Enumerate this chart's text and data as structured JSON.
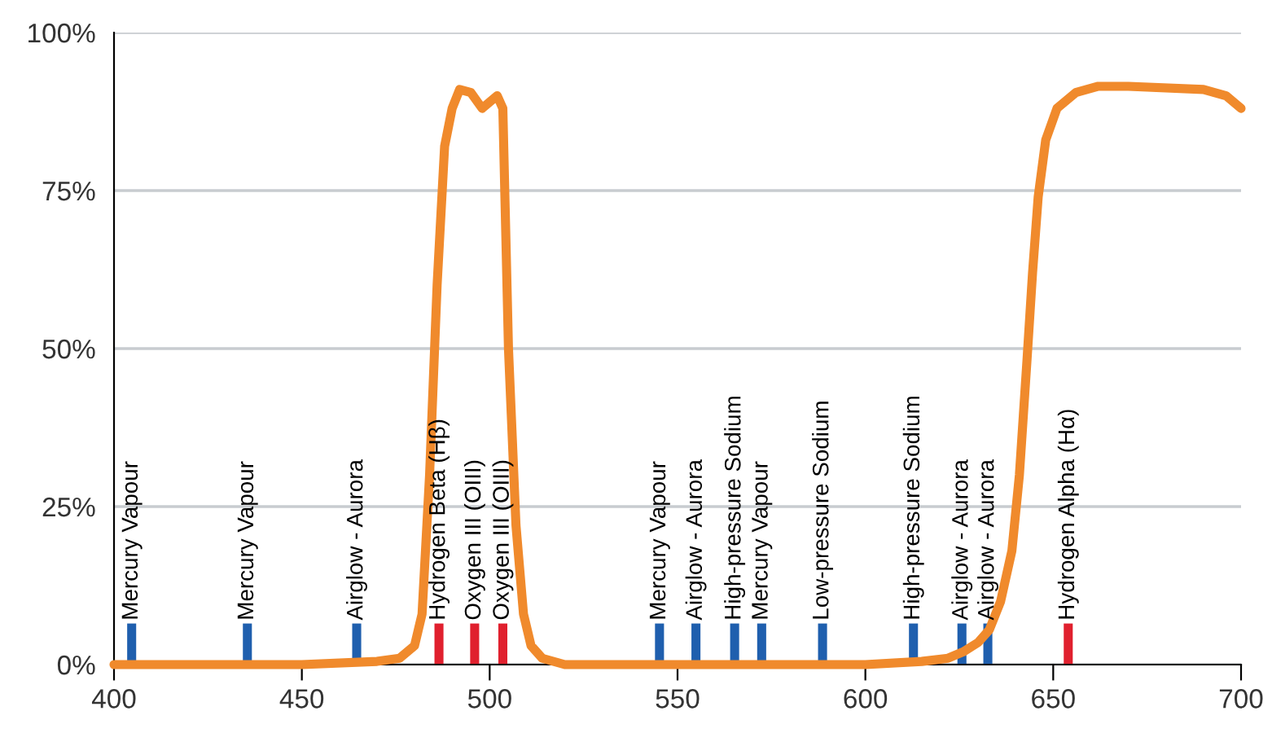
{
  "chart_data": {
    "type": "line",
    "xlim": [
      400,
      700
    ],
    "xticks": [
      400,
      450,
      500,
      550,
      600,
      650,
      700
    ],
    "ylim": [
      0,
      100
    ],
    "yticks": [
      {
        "value": 0,
        "label": "0%"
      },
      {
        "value": 25,
        "label": "25%"
      },
      {
        "value": 50,
        "label": "50%"
      },
      {
        "value": 75,
        "label": "75%"
      },
      {
        "value": 100,
        "label": "100%"
      }
    ],
    "grid": "y",
    "series": [
      {
        "type": "bar",
        "x": [
          404.7,
          435.5,
          464.6,
          486.5,
          496,
          503.5,
          545.2,
          554.9,
          565.2,
          572.4,
          588.6,
          612.8,
          625.7,
          632.6,
          654
        ],
        "values": [
          6.5,
          6.5,
          6.5,
          6.5,
          6.5,
          6.5,
          6.5,
          6.5,
          6.5,
          6.5,
          6.5,
          6.5,
          6.5,
          6.5,
          6.5
        ],
        "colors": [
          "#1f5fae",
          "#1f5fae",
          "#1f5fae",
          "#e0202e",
          "#e0202e",
          "#e0202e",
          "#1f5fae",
          "#1f5fae",
          "#1f5fae",
          "#1f5fae",
          "#1f5fae",
          "#1f5fae",
          "#1f5fae",
          "#1f5fae",
          "#e0202e"
        ]
      },
      {
        "color": "#f08a2c",
        "x": [
          400,
          450,
          470,
          476,
          480,
          482,
          484,
          486,
          488,
          490,
          492,
          495,
          498,
          500,
          502,
          503.5,
          505,
          507,
          509,
          511,
          514,
          520,
          560,
          600,
          615,
          622,
          626,
          630,
          633,
          636,
          639,
          641,
          643,
          644.5,
          646,
          648,
          651,
          656,
          662,
          670,
          690,
          696,
          700
        ],
        "values": [
          0,
          0,
          0.5,
          1,
          3,
          8,
          30,
          60,
          82,
          88,
          91,
          90.5,
          88,
          89,
          90,
          88,
          50,
          22,
          8,
          3,
          1,
          0,
          0,
          0,
          0.5,
          1,
          2,
          3.5,
          5.5,
          10,
          18,
          30,
          48,
          62,
          74,
          83,
          88,
          90.5,
          91.5,
          91.5,
          91,
          90,
          88
        ]
      }
    ],
    "annotations": [
      {
        "text": "Mercury Vapour",
        "x": 404.7,
        "y": 7
      },
      {
        "text": "Mercury Vapour",
        "x": 435.5,
        "y": 7
      },
      {
        "text": "Airglow - Aurora",
        "x": 464.6,
        "y": 7
      },
      {
        "text": "Hydrogen Beta (Hβ)",
        "x": 486.5,
        "y": 7
      },
      {
        "text": "Oxygen III (OIII)",
        "x": 496,
        "y": 7
      },
      {
        "text": "Oxygen III (OIII)",
        "x": 503.5,
        "y": 7
      },
      {
        "text": "Mercury Vapour",
        "x": 545.2,
        "y": 7
      },
      {
        "text": "Airglow - Aurora",
        "x": 554.9,
        "y": 7
      },
      {
        "text": "High-pressure Sodium",
        "x": 565.2,
        "y": 7
      },
      {
        "text": "Mercury Vapour",
        "x": 572.4,
        "y": 7
      },
      {
        "text": "Low-pressure Sodium",
        "x": 588.6,
        "y": 7
      },
      {
        "text": "High-pressure Sodium",
        "x": 612.8,
        "y": 7
      },
      {
        "text": "Airglow - Aurora",
        "x": 625.7,
        "y": 7
      },
      {
        "text": "Airglow - Aurora",
        "x": 632.6,
        "y": 7
      },
      {
        "text": "Hydrogen Alpha (Hα)",
        "x": 654,
        "y": 7
      }
    ]
  }
}
